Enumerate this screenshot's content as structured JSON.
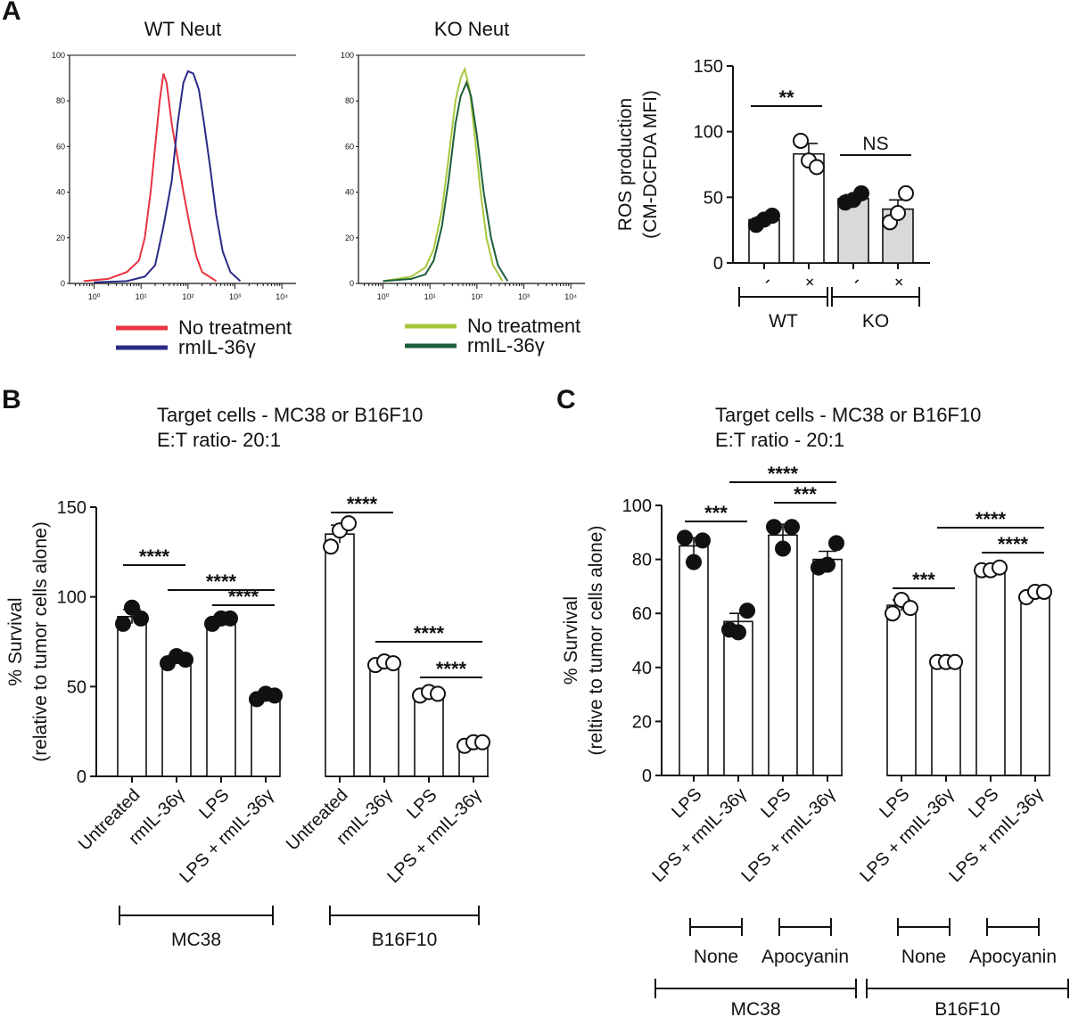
{
  "panels": {
    "a": "A",
    "b": "B",
    "c": "C"
  },
  "chart_data": [
    {
      "type": "line",
      "panel": "A",
      "title": "WT Neut",
      "x_scale": "log",
      "xlim": [
        0.3,
        20000
      ],
      "ylim": [
        0,
        100
      ],
      "x_tick_labels": [
        "10⁰",
        "10¹",
        "10²",
        "10³",
        "10⁴"
      ],
      "y_tick_labels": [
        "0",
        "20",
        "40",
        "60",
        "80",
        "100"
      ],
      "series": [
        {
          "name": "No treatment",
          "color": "#e8343f",
          "points": [
            [
              0.6,
              1
            ],
            [
              2,
              2
            ],
            [
              5,
              5
            ],
            [
              9,
              10
            ],
            [
              12,
              20
            ],
            [
              16,
              40
            ],
            [
              20,
              60
            ],
            [
              25,
              80
            ],
            [
              30,
              92
            ],
            [
              35,
              88
            ],
            [
              45,
              70
            ],
            [
              60,
              55
            ],
            [
              80,
              40
            ],
            [
              110,
              25
            ],
            [
              150,
              12
            ],
            [
              200,
              5
            ],
            [
              400,
              1
            ]
          ]
        },
        {
          "name": "rmIL-36γ",
          "color": "#2b2a87",
          "points": [
            [
              1,
              0.5
            ],
            [
              5,
              1
            ],
            [
              12,
              3
            ],
            [
              20,
              8
            ],
            [
              30,
              25
            ],
            [
              45,
              45
            ],
            [
              60,
              70
            ],
            [
              80,
              88
            ],
            [
              100,
              93
            ],
            [
              130,
              92
            ],
            [
              170,
              85
            ],
            [
              220,
              70
            ],
            [
              300,
              50
            ],
            [
              400,
              30
            ],
            [
              550,
              14
            ],
            [
              800,
              5
            ],
            [
              1300,
              1
            ]
          ]
        }
      ],
      "legend": [
        "No treatment",
        "rmIL-36γ"
      ]
    },
    {
      "type": "line",
      "panel": "A",
      "title": "KO Neut",
      "x_scale": "log",
      "xlim": [
        0.3,
        20000
      ],
      "ylim": [
        0,
        100
      ],
      "x_tick_labels": [
        "10⁰",
        "10¹",
        "10²",
        "10³",
        "10⁴"
      ],
      "y_tick_labels": [
        "0",
        "20",
        "40",
        "60",
        "80",
        "100"
      ],
      "series": [
        {
          "name": "No treatment",
          "color": "#a6c83c",
          "points": [
            [
              1,
              1
            ],
            [
              4,
              3
            ],
            [
              8,
              7
            ],
            [
              12,
              15
            ],
            [
              18,
              32
            ],
            [
              25,
              55
            ],
            [
              35,
              80
            ],
            [
              45,
              90
            ],
            [
              55,
              94
            ],
            [
              70,
              85
            ],
            [
              90,
              65
            ],
            [
              120,
              40
            ],
            [
              160,
              20
            ],
            [
              220,
              8
            ],
            [
              350,
              1
            ]
          ]
        },
        {
          "name": "rmIL-36γ",
          "color": "#1b5e3a",
          "points": [
            [
              1,
              1
            ],
            [
              4,
              2
            ],
            [
              8,
              4
            ],
            [
              12,
              10
            ],
            [
              18,
              25
            ],
            [
              25,
              45
            ],
            [
              35,
              70
            ],
            [
              45,
              82
            ],
            [
              60,
              88
            ],
            [
              75,
              82
            ],
            [
              100,
              65
            ],
            [
              140,
              40
            ],
            [
              200,
              20
            ],
            [
              280,
              8
            ],
            [
              450,
              1
            ]
          ]
        }
      ],
      "legend": [
        "No treatment",
        "rmIL-36γ"
      ]
    },
    {
      "type": "bar",
      "panel": "A",
      "ylabel": [
        "ROS production",
        "(CM-DCFDA MFI)"
      ],
      "ylim": [
        0,
        150
      ],
      "y_ticks": [
        0,
        50,
        100,
        150
      ],
      "categories": [
        "-",
        "+",
        "-",
        "+"
      ],
      "groups": [
        {
          "label": "WT",
          "span": [
            0,
            1
          ]
        },
        {
          "label": "KO",
          "span": [
            2,
            3
          ]
        }
      ],
      "values": [
        33,
        83,
        49,
        41
      ],
      "errors": [
        2,
        8,
        3,
        7
      ],
      "fill": [
        "white",
        "white",
        "#d9d9d9",
        "#d9d9d9"
      ],
      "marker_filled": [
        true,
        false,
        true,
        false
      ],
      "points": [
        [
          29,
          33,
          36
        ],
        [
          93,
          78,
          73
        ],
        [
          46,
          48,
          53
        ],
        [
          31,
          38,
          53
        ]
      ],
      "annotations": [
        {
          "text": "**",
          "from": 0,
          "to": 1
        },
        {
          "text": "NS",
          "from": 2,
          "to": 3
        }
      ]
    },
    {
      "type": "bar",
      "panel": "B",
      "title": [
        "Target cells - MC38 or B16F10",
        "E:T ratio- 20:1"
      ],
      "ylabel": [
        "% Survival",
        "(relative to tumor cells alone)"
      ],
      "ylim": [
        0,
        150
      ],
      "y_ticks": [
        0,
        50,
        100,
        150
      ],
      "categories": [
        "Untreated",
        "rmIL-36γ",
        "LPS",
        "LPS + rmIL-36γ",
        "Untreated",
        "rmIL-36γ",
        "LPS",
        "LPS + rmIL-36γ"
      ],
      "groups": [
        {
          "label": "MC38",
          "span": [
            0,
            3
          ]
        },
        {
          "label": "B16F10",
          "span": [
            4,
            7
          ]
        }
      ],
      "values": [
        89,
        65,
        87,
        45,
        135,
        63,
        46,
        18
      ],
      "errors": [
        4,
        2,
        2,
        2,
        5,
        1,
        1,
        1
      ],
      "marker_filled": [
        true,
        true,
        true,
        true,
        false,
        false,
        false,
        false
      ],
      "points": [
        [
          85,
          94,
          88
        ],
        [
          63,
          67,
          65
        ],
        [
          85,
          88,
          88
        ],
        [
          43,
          46,
          45
        ],
        [
          128,
          137,
          141
        ],
        [
          62,
          64,
          63
        ],
        [
          45,
          47,
          46
        ],
        [
          17,
          19,
          19
        ]
      ],
      "annotations": [
        {
          "text": "****",
          "from": 0,
          "to": 1
        },
        {
          "text": "****",
          "from": 1,
          "to": 3
        },
        {
          "text": "****",
          "from": 2,
          "to": 3
        },
        {
          "text": "****",
          "from": 4,
          "to": 5
        },
        {
          "text": "****",
          "from": 5,
          "to": 7
        },
        {
          "text": "****",
          "from": 6,
          "to": 7
        }
      ]
    },
    {
      "type": "bar",
      "panel": "C",
      "title": [
        "Target cells - MC38 or B16F10",
        "E:T ratio - 20:1"
      ],
      "ylabel": [
        "% Survival",
        "(reltive to tumor cells alone)"
      ],
      "ylim": [
        0,
        100
      ],
      "y_ticks": [
        0,
        20,
        40,
        60,
        80,
        100
      ],
      "categories": [
        "LPS",
        "LPS + rmIL-36γ",
        "LPS",
        "LPS + rmIL-36γ",
        "LPS",
        "LPS + rmIL-36γ",
        "LPS",
        "LPS + rmIL-36γ"
      ],
      "subgroups": [
        {
          "label": "None",
          "span": [
            0,
            1
          ]
        },
        {
          "label": "Apocyanin",
          "span": [
            2,
            3
          ]
        },
        {
          "label": "None",
          "span": [
            4,
            5
          ]
        },
        {
          "label": "Apocyanin",
          "span": [
            6,
            7
          ]
        }
      ],
      "groups": [
        {
          "label": "MC38",
          "span": [
            0,
            3
          ]
        },
        {
          "label": "B16F10",
          "span": [
            4,
            7
          ]
        }
      ],
      "values": [
        85,
        57,
        89,
        80,
        63,
        42,
        76,
        67
      ],
      "errors": [
        3,
        3,
        4,
        3,
        2,
        0.5,
        0.5,
        1
      ],
      "marker_filled": [
        true,
        true,
        true,
        true,
        false,
        false,
        false,
        false
      ],
      "points": [
        [
          88,
          79,
          87
        ],
        [
          54,
          53,
          61
        ],
        [
          92,
          84,
          92
        ],
        [
          77,
          78,
          86
        ],
        [
          60,
          65,
          62
        ],
        [
          42,
          42,
          42
        ],
        [
          76,
          76,
          77
        ],
        [
          66,
          68,
          68
        ]
      ],
      "annotations": [
        {
          "text": "***",
          "from": 0,
          "to": 1
        },
        {
          "text": "****",
          "from": 1,
          "to": 3
        },
        {
          "text": "***",
          "from": 2,
          "to": 3
        },
        {
          "text": "***",
          "from": 4,
          "to": 5
        },
        {
          "text": "****",
          "from": 5,
          "to": 7
        },
        {
          "text": "****",
          "from": 6,
          "to": 7
        }
      ]
    }
  ]
}
